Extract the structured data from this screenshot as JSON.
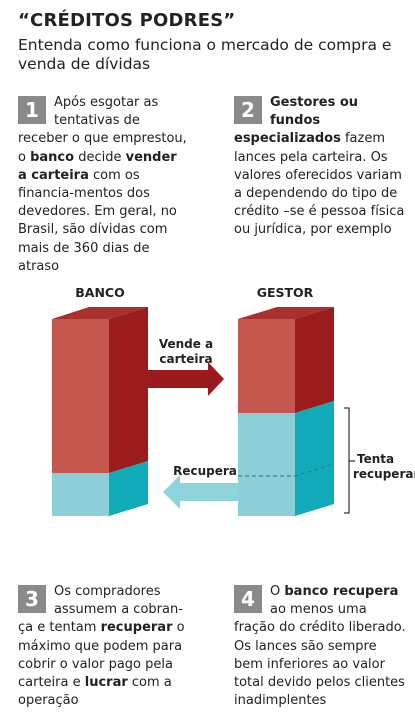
{
  "header": {
    "title": "“CRÉDITOS PODRES”",
    "subtitle": "Entenda como funciona o mercado de compra e venda de dívidas"
  },
  "steps": [
    {
      "number": "1",
      "parts": [
        {
          "text": "Após esgotar as tentativas de receber o que emprestou, o ",
          "bold": false
        },
        {
          "text": "banco",
          "bold": true
        },
        {
          "text": " decide ",
          "bold": false
        },
        {
          "text": "vender a carteira",
          "bold": true
        },
        {
          "text": " com os financia-mentos dos devedores. Em geral, no Brasil, são dívidas com mais de 360 dias de atraso",
          "bold": false
        }
      ]
    },
    {
      "number": "2",
      "parts": [
        {
          "text": "Gestores ou fundos especializados",
          "bold": true
        },
        {
          "text": " fazem lances pela carteira. Os valores oferecidos variam a dependendo do tipo de crédito –se é pessoa física ou jurídica, por exemplo",
          "bold": false
        }
      ]
    },
    {
      "number": "3",
      "parts": [
        {
          "text": "Os compradores assumem a cobran-ça e tentam ",
          "bold": false
        },
        {
          "text": "recuperar",
          "bold": true
        },
        {
          "text": " o máximo que podem para cobrir o valor pago pela carteira e ",
          "bold": false
        },
        {
          "text": "lucrar",
          "bold": true
        },
        {
          "text": " com a operação",
          "bold": false
        }
      ]
    },
    {
      "number": "4",
      "parts": [
        {
          "text": "O ",
          "bold": false
        },
        {
          "text": "banco recupera",
          "bold": true
        },
        {
          "text": " ao menos uma fração do crédito liberado. Os lances são sempre bem inferiores ao valor total devido pelos clientes inadimplentes",
          "bold": false
        }
      ]
    }
  ],
  "diagram": {
    "banco_label": "BANCO",
    "gestor_label": "GESTOR",
    "sell_label_line1": "Vende a",
    "sell_label_line2": "carteira",
    "recover_label": "Recupera",
    "bracket_label_line1": "Tenta",
    "bracket_label_line2": "recuperar",
    "colors": {
      "red_front": "#c4584f",
      "red_side": "#9b1c1d",
      "red_top": "#a8312e",
      "teal_front": "#8ccfd8",
      "teal_side": "#11aab9",
      "teal_top": "#5fb9c5",
      "arrow_red": "#9b1a1d",
      "arrow_teal": "#8fd3dd"
    }
  }
}
